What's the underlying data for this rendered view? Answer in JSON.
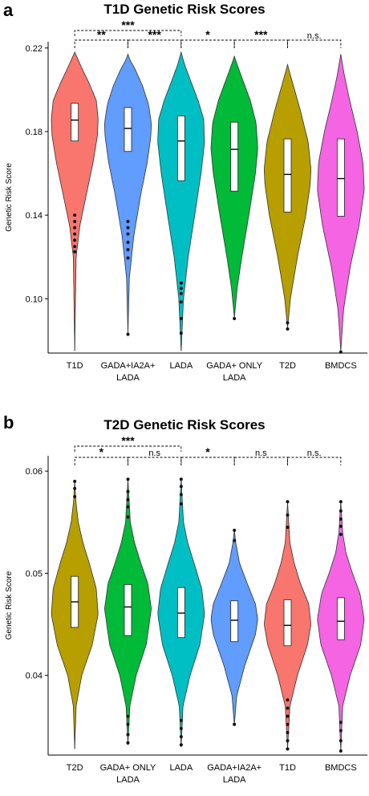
{
  "chart_data": [
    {
      "type": "violin",
      "panel_label": "a",
      "title": "T1D Genetic Risk Scores",
      "ylabel": "Genetic Risk Score",
      "xlabel": "",
      "ylim": [
        0.074,
        0.223
      ],
      "yticks": [
        0.1,
        0.14,
        0.18,
        0.22
      ],
      "ytick_labels": [
        "0.10",
        "0.14",
        "0.18",
        "0.22"
      ],
      "grid": false,
      "groups": [
        {
          "label": [
            "T1D"
          ],
          "color": "#F8766D",
          "min": 0.075,
          "max": 0.218,
          "q1": 0.1755,
          "median": 0.1855,
          "q3": 0.1935,
          "outliers": [
            0.1225,
            0.125,
            0.128,
            0.131,
            0.134,
            0.137,
            0.14
          ],
          "density": [
            [
              0.075,
              0.0
            ],
            [
              0.12,
              0.06
            ],
            [
              0.135,
              0.22
            ],
            [
              0.15,
              0.5
            ],
            [
              0.165,
              0.78
            ],
            [
              0.178,
              0.97
            ],
            [
              0.186,
              1.0
            ],
            [
              0.195,
              0.92
            ],
            [
              0.203,
              0.62
            ],
            [
              0.21,
              0.32
            ],
            [
              0.215,
              0.12
            ],
            [
              0.218,
              0.0
            ]
          ]
        },
        {
          "label": [
            "GADA+IA2A+",
            "LADA"
          ],
          "color": "#619CFF",
          "min": 0.083,
          "max": 0.217,
          "q1": 0.1705,
          "median": 0.1815,
          "q3": 0.1915,
          "outliers": [
            0.083,
            0.1195,
            0.1235,
            0.127,
            0.131,
            0.134,
            0.137
          ],
          "density": [
            [
              0.083,
              0.0
            ],
            [
              0.11,
              0.06
            ],
            [
              0.13,
              0.25
            ],
            [
              0.15,
              0.55
            ],
            [
              0.165,
              0.82
            ],
            [
              0.178,
              0.98
            ],
            [
              0.184,
              1.0
            ],
            [
              0.193,
              0.88
            ],
            [
              0.202,
              0.62
            ],
            [
              0.21,
              0.3
            ],
            [
              0.214,
              0.1
            ],
            [
              0.217,
              0.0
            ]
          ]
        },
        {
          "label": [
            "LADA"
          ],
          "color": "#00BFC4",
          "min": 0.075,
          "max": 0.218,
          "q1": 0.1565,
          "median": 0.1755,
          "q3": 0.1875,
          "outliers": [
            0.0835,
            0.0905,
            0.0985,
            0.1025,
            0.105,
            0.1075
          ],
          "density": [
            [
              0.075,
              0.0
            ],
            [
              0.1,
              0.1
            ],
            [
              0.12,
              0.3
            ],
            [
              0.14,
              0.58
            ],
            [
              0.16,
              0.85
            ],
            [
              0.175,
              1.0
            ],
            [
              0.186,
              0.96
            ],
            [
              0.195,
              0.72
            ],
            [
              0.205,
              0.38
            ],
            [
              0.212,
              0.15
            ],
            [
              0.218,
              0.0
            ]
          ]
        },
        {
          "label": [
            "GADA+ ONLY",
            "LADA"
          ],
          "color": "#00BA38",
          "min": 0.091,
          "max": 0.216,
          "q1": 0.1515,
          "median": 0.1715,
          "q3": 0.1845,
          "outliers": [
            0.0905
          ],
          "density": [
            [
              0.091,
              0.0
            ],
            [
              0.105,
              0.12
            ],
            [
              0.12,
              0.32
            ],
            [
              0.14,
              0.62
            ],
            [
              0.16,
              0.9
            ],
            [
              0.172,
              1.0
            ],
            [
              0.184,
              0.93
            ],
            [
              0.195,
              0.68
            ],
            [
              0.205,
              0.35
            ],
            [
              0.212,
              0.12
            ],
            [
              0.216,
              0.0
            ]
          ]
        },
        {
          "label": [
            "T2D"
          ],
          "color": "#B79F00",
          "min": 0.086,
          "max": 0.212,
          "q1": 0.1415,
          "median": 0.1595,
          "q3": 0.1765,
          "outliers": [
            0.0855,
            0.0885
          ],
          "density": [
            [
              0.086,
              0.0
            ],
            [
              0.1,
              0.12
            ],
            [
              0.12,
              0.42
            ],
            [
              0.14,
              0.78
            ],
            [
              0.155,
              0.97
            ],
            [
              0.162,
              1.0
            ],
            [
              0.175,
              0.88
            ],
            [
              0.19,
              0.55
            ],
            [
              0.2,
              0.3
            ],
            [
              0.207,
              0.12
            ],
            [
              0.212,
              0.0
            ]
          ]
        },
        {
          "label": [
            "BMDCS"
          ],
          "color": "#F564E3",
          "min": 0.075,
          "max": 0.217,
          "q1": 0.1395,
          "median": 0.1575,
          "q3": 0.1765,
          "outliers": [
            0.0745
          ],
          "density": [
            [
              0.075,
              0.0
            ],
            [
              0.095,
              0.12
            ],
            [
              0.115,
              0.4
            ],
            [
              0.135,
              0.78
            ],
            [
              0.152,
              1.0
            ],
            [
              0.165,
              0.95
            ],
            [
              0.18,
              0.7
            ],
            [
              0.195,
              0.38
            ],
            [
              0.207,
              0.15
            ],
            [
              0.217,
              0.0
            ]
          ]
        }
      ],
      "significance": [
        {
          "from": 0,
          "to": 1,
          "label": "**",
          "level": 0
        },
        {
          "from": 1,
          "to": 2,
          "label": "***",
          "level": 0
        },
        {
          "from": 2,
          "to": 3,
          "label": "*",
          "level": 0
        },
        {
          "from": 3,
          "to": 4,
          "label": "***",
          "level": 0
        },
        {
          "from": 4,
          "to": 5,
          "label": "n.s.",
          "level": 0
        },
        {
          "from": 0,
          "to": 2,
          "label": "***",
          "level": 1
        }
      ]
    },
    {
      "type": "violin",
      "panel_label": "b",
      "title": "T2D Genetic Risk Scores",
      "ylabel": "Genetic Risk Score",
      "xlabel": "",
      "ylim": [
        0.0322,
        0.0615
      ],
      "yticks": [
        0.04,
        0.05,
        0.06
      ],
      "ytick_labels": [
        "0.04",
        "0.05",
        "0.06"
      ],
      "grid": false,
      "groups": [
        {
          "label": [
            "T2D"
          ],
          "color": "#B79F00",
          "min": 0.0328,
          "max": 0.059,
          "q1": 0.0447,
          "median": 0.0472,
          "q3": 0.0497,
          "outliers": [
            0.0575,
            0.0583,
            0.059
          ],
          "density": [
            [
              0.0328,
              0.0
            ],
            [
              0.037,
              0.06
            ],
            [
              0.04,
              0.3
            ],
            [
              0.043,
              0.75
            ],
            [
              0.046,
              1.0
            ],
            [
              0.0485,
              0.92
            ],
            [
              0.051,
              0.62
            ],
            [
              0.053,
              0.35
            ],
            [
              0.055,
              0.15
            ],
            [
              0.057,
              0.05
            ],
            [
              0.059,
              0.0
            ]
          ]
        },
        {
          "label": [
            "GADA+ ONLY",
            "LADA"
          ],
          "color": "#00BA38",
          "min": 0.0332,
          "max": 0.0592,
          "q1": 0.0439,
          "median": 0.0467,
          "q3": 0.0489,
          "outliers": [
            0.0334,
            0.0342,
            0.0352,
            0.036,
            0.0555,
            0.0565,
            0.0572,
            0.058,
            0.0592
          ],
          "density": [
            [
              0.0332,
              0.0
            ],
            [
              0.037,
              0.08
            ],
            [
              0.04,
              0.35
            ],
            [
              0.043,
              0.78
            ],
            [
              0.0465,
              1.0
            ],
            [
              0.049,
              0.85
            ],
            [
              0.051,
              0.55
            ],
            [
              0.053,
              0.28
            ],
            [
              0.055,
              0.1
            ],
            [
              0.0592,
              0.0
            ]
          ]
        },
        {
          "label": [
            "LADA"
          ],
          "color": "#00BFC4",
          "min": 0.033,
          "max": 0.0592,
          "q1": 0.0437,
          "median": 0.0461,
          "q3": 0.0486,
          "outliers": [
            0.0332,
            0.034,
            0.0348,
            0.0356,
            0.0568,
            0.0577,
            0.0585,
            0.0592
          ],
          "density": [
            [
              0.033,
              0.0
            ],
            [
              0.037,
              0.08
            ],
            [
              0.04,
              0.38
            ],
            [
              0.043,
              0.8
            ],
            [
              0.046,
              1.0
            ],
            [
              0.0485,
              0.88
            ],
            [
              0.051,
              0.55
            ],
            [
              0.053,
              0.28
            ],
            [
              0.055,
              0.1
            ],
            [
              0.0592,
              0.0
            ]
          ]
        },
        {
          "label": [
            "GADA+IA2A+",
            "LADA"
          ],
          "color": "#619CFF",
          "min": 0.0352,
          "max": 0.0542,
          "q1": 0.0433,
          "median": 0.0454,
          "q3": 0.0473,
          "outliers": [
            0.0352,
            0.0532,
            0.0542
          ],
          "density": [
            [
              0.0352,
              0.0
            ],
            [
              0.038,
              0.1
            ],
            [
              0.041,
              0.45
            ],
            [
              0.044,
              0.9
            ],
            [
              0.0455,
              1.0
            ],
            [
              0.047,
              0.9
            ],
            [
              0.049,
              0.55
            ],
            [
              0.051,
              0.22
            ],
            [
              0.053,
              0.06
            ],
            [
              0.0542,
              0.0
            ]
          ]
        },
        {
          "label": [
            "T1D"
          ],
          "color": "#F8766D",
          "min": 0.0328,
          "max": 0.057,
          "q1": 0.0429,
          "median": 0.0449,
          "q3": 0.0474,
          "outliers": [
            0.0328,
            0.0336,
            0.0344,
            0.0352,
            0.036,
            0.0368,
            0.0376,
            0.0545,
            0.0557,
            0.057
          ],
          "density": [
            [
              0.0328,
              0.0
            ],
            [
              0.037,
              0.1
            ],
            [
              0.04,
              0.42
            ],
            [
              0.043,
              0.85
            ],
            [
              0.045,
              1.0
            ],
            [
              0.047,
              0.9
            ],
            [
              0.049,
              0.55
            ],
            [
              0.051,
              0.28
            ],
            [
              0.053,
              0.1
            ],
            [
              0.057,
              0.0
            ]
          ]
        },
        {
          "label": [
            "BMDCS"
          ],
          "color": "#F564E3",
          "min": 0.0326,
          "max": 0.057,
          "q1": 0.0435,
          "median": 0.0453,
          "q3": 0.0476,
          "outliers": [
            0.0326,
            0.0336,
            0.0346,
            0.0354,
            0.0538,
            0.0546,
            0.0553,
            0.0561,
            0.057
          ],
          "density": [
            [
              0.0326,
              0.0
            ],
            [
              0.037,
              0.08
            ],
            [
              0.04,
              0.4
            ],
            [
              0.043,
              0.85
            ],
            [
              0.0455,
              1.0
            ],
            [
              0.048,
              0.82
            ],
            [
              0.05,
              0.5
            ],
            [
              0.052,
              0.22
            ],
            [
              0.054,
              0.08
            ],
            [
              0.057,
              0.0
            ]
          ]
        }
      ],
      "significance": [
        {
          "from": 0,
          "to": 1,
          "label": "*",
          "level": 0
        },
        {
          "from": 1,
          "to": 2,
          "label": "n.s",
          "level": 0
        },
        {
          "from": 2,
          "to": 3,
          "label": "*",
          "level": 0
        },
        {
          "from": 3,
          "to": 4,
          "label": "n.s",
          "level": 0
        },
        {
          "from": 4,
          "to": 5,
          "label": "n.s.",
          "level": 0
        },
        {
          "from": 0,
          "to": 2,
          "label": "***",
          "level": 1
        }
      ]
    }
  ]
}
